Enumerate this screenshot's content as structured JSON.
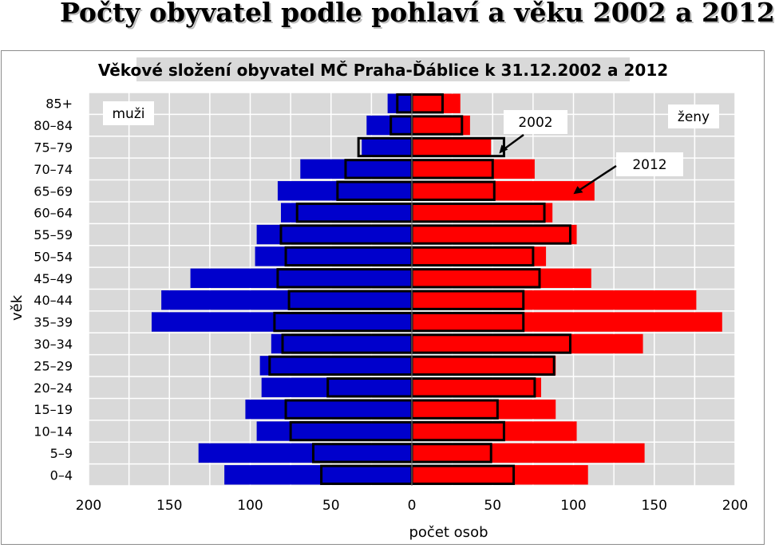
{
  "page_title": "Počty obyvatel podle pohlaví a věku 2002 a 2012",
  "chart_data": {
    "type": "bar",
    "orientation": "horizontal",
    "title": "Věkové složení obyvatel MČ Praha-Ďáblice k 31.12.2002 a 2012",
    "xlabel": "počet osob",
    "ylabel": "věk",
    "xlim": [
      -200,
      200
    ],
    "x_ticks": [
      "200",
      "150",
      "100",
      "50",
      "0",
      "50",
      "100",
      "150",
      "200"
    ],
    "categories": [
      "85+",
      "80–84",
      "75–79",
      "70–74",
      "65–69",
      "60–64",
      "55–59",
      "50–54",
      "45–49",
      "40–44",
      "35–39",
      "30–34",
      "25–29",
      "20–24",
      "15–19",
      "10–14",
      "5–9",
      "0–4"
    ],
    "grid": true,
    "legend": {
      "left": "muži",
      "right": "ženy"
    },
    "colors": {
      "male": "#0000cc",
      "female": "#ff0000",
      "outline": "#000000",
      "plot_bg": "#d9d9d9",
      "gridline": "#ffffff"
    },
    "series": [
      {
        "name": "2012",
        "sex": "male",
        "values": [
          15,
          28,
          31,
          69,
          83,
          81,
          96,
          97,
          137,
          155,
          161,
          87,
          94,
          93,
          103,
          96,
          132,
          116
        ]
      },
      {
        "name": "2002",
        "sex": "male",
        "values": [
          9,
          13,
          33,
          41,
          46,
          71,
          81,
          78,
          83,
          76,
          85,
          80,
          88,
          52,
          78,
          75,
          61,
          56
        ]
      },
      {
        "name": "2012",
        "sex": "female",
        "values": [
          30,
          36,
          49,
          76,
          113,
          87,
          102,
          83,
          111,
          176,
          192,
          143,
          89,
          80,
          89,
          102,
          144,
          109
        ]
      },
      {
        "name": "2002",
        "sex": "female",
        "values": [
          19,
          31,
          57,
          50,
          51,
          82,
          98,
          75,
          79,
          69,
          69,
          98,
          88,
          76,
          53,
          57,
          49,
          63
        ]
      }
    ],
    "annotations": [
      {
        "text": "2002",
        "points_to": {
          "category": "75–79",
          "series": "2002",
          "sex": "female"
        }
      },
      {
        "text": "2012",
        "points_to": {
          "category": "65–69",
          "series": "2012",
          "sex": "female"
        }
      }
    ]
  }
}
